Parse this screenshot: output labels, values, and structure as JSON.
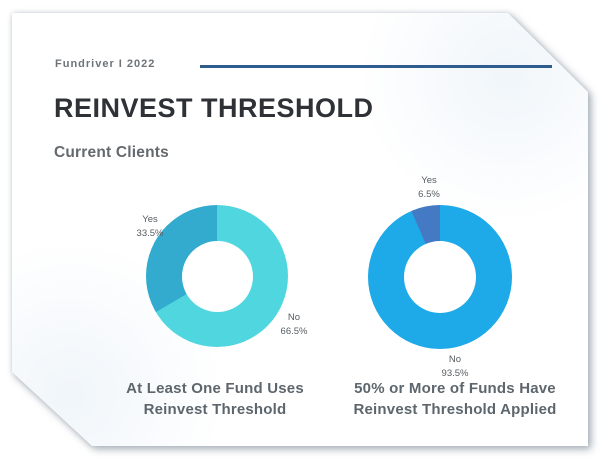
{
  "slide": {
    "brand": "Fundriver I 2022",
    "title": "REINVEST THRESHOLD",
    "subtitle": "Current Clients",
    "accent_line_color": "#2e5c8f",
    "title_color": "#2e3237",
    "subtitle_color": "#64696e",
    "caption_color": "#5d666d"
  },
  "chart_data": [
    {
      "type": "pie",
      "variant": "donut",
      "title": "At Least One Fund Uses Reinvest Threshold",
      "title_lines": [
        "At Least One Fund Uses",
        "Reinvest Threshold"
      ],
      "categories": [
        "Yes",
        "No"
      ],
      "values": [
        33.5,
        66.5
      ],
      "value_labels": [
        "33.5%",
        "66.5%"
      ],
      "colors": [
        "#33abcf",
        "#4fd6de"
      ],
      "hole_ratio": 0.5,
      "layout": "Yes slice sweeps counterclockwise from 12 o'clock; labels outside ring (Yes upper-left, No lower-right)"
    },
    {
      "type": "pie",
      "variant": "donut",
      "title": "50% or More of Funds Have Reinvest Threshold Applied",
      "title_lines": [
        "50% or More of Funds Have",
        "Reinvest Threshold Applied"
      ],
      "categories": [
        "Yes",
        "No"
      ],
      "values": [
        6.5,
        93.5
      ],
      "value_labels": [
        "6.5%",
        "93.5%"
      ],
      "colors": [
        "#4479c4",
        "#1ea9e8"
      ],
      "hole_ratio": 0.5,
      "layout": "Yes slice sweeps counterclockwise from 12 o'clock; labels outside ring (Yes top, No bottom)"
    }
  ]
}
